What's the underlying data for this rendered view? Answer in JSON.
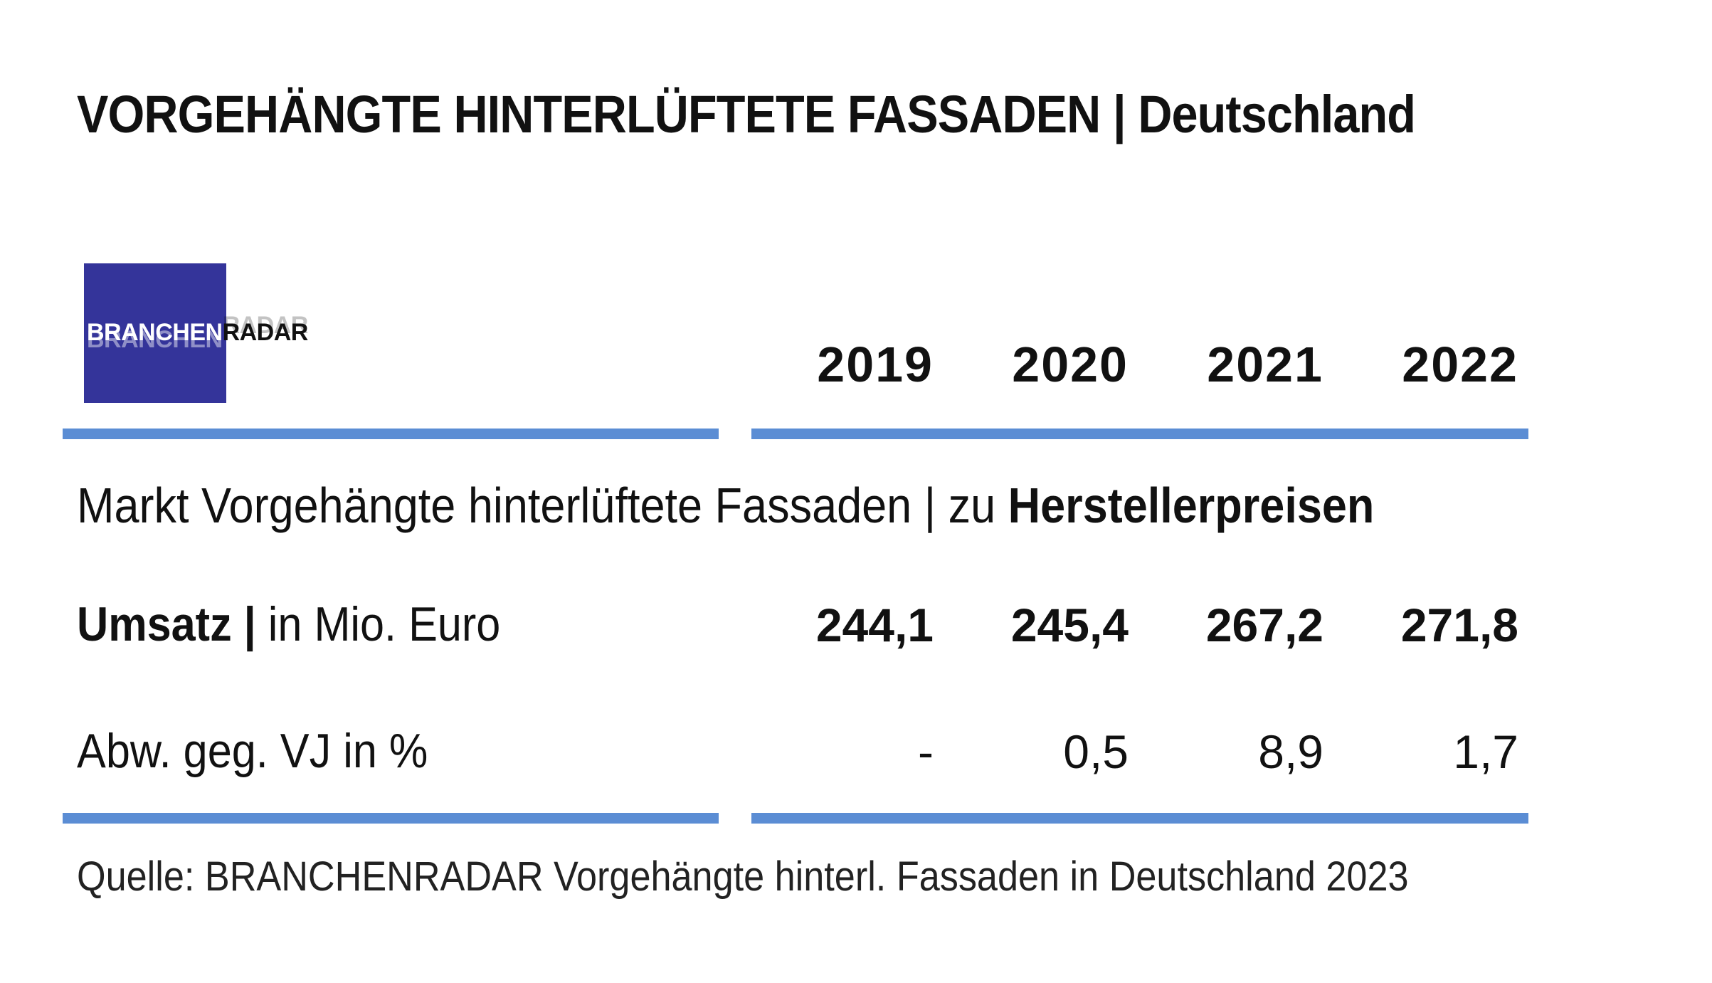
{
  "title": "VORGEHÄNGTE HINTERLÜFTETE FASSADEN | Deutschland",
  "logo": {
    "part1": "BRANCHEN",
    "part2": "RADAR",
    "bg_color": "#34349a"
  },
  "accent_color": "#5b8dd4",
  "subtitle": {
    "regular": "Markt Vorgehängte hinterlüftete Fassaden | zu ",
    "bold": "Herstellerpreisen"
  },
  "chart_data": {
    "type": "table",
    "columns": [
      "2019",
      "2020",
      "2021",
      "2022"
    ],
    "rows": [
      {
        "label_bold": "Umsatz |",
        "label_regular": " in Mio. Euro",
        "values": [
          "244,1",
          "245,4",
          "267,2",
          "271,8"
        ]
      },
      {
        "label_bold": "",
        "label_regular": "Abw. geg. VJ in %",
        "values": [
          "-",
          "0,5",
          "8,9",
          "1,7"
        ]
      }
    ]
  },
  "source": "Quelle: BRANCHENRADAR Vorgehängte hinterl. Fassaden in Deutschland 2023"
}
